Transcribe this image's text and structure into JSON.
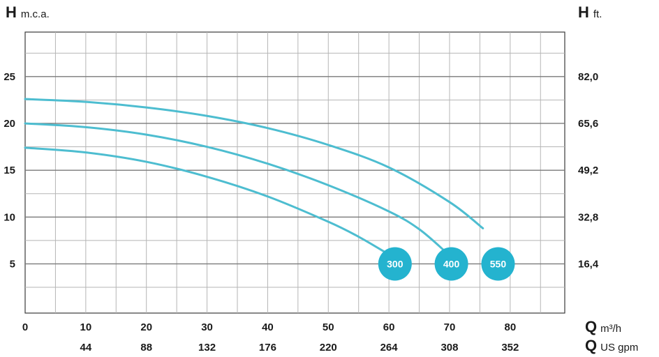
{
  "chart_data": {
    "type": "line",
    "left_axis": {
      "symbol": "H",
      "unit": "m.c.a.",
      "ticks": [
        5,
        10,
        15,
        20,
        25
      ],
      "ylim": [
        -0.25,
        29.75
      ]
    },
    "right_axis": {
      "symbol": "H",
      "unit": "ft.",
      "ticks": [
        "16,4",
        "32,8",
        "49,2",
        "65,6",
        "82,0"
      ]
    },
    "x_axis_primary": {
      "symbol": "Q",
      "unit": "m³/h",
      "ticks": [
        0,
        10,
        20,
        30,
        40,
        50,
        60,
        70,
        80
      ],
      "xlim": [
        0,
        89
      ]
    },
    "x_axis_secondary": {
      "symbol": "Q",
      "unit": "US gpm",
      "ticks": [
        44,
        88,
        132,
        176,
        220,
        264,
        308,
        352
      ]
    },
    "grid": true,
    "series": [
      {
        "name": "300",
        "x": [
          0,
          10,
          20,
          30,
          40,
          50,
          55,
          59.5
        ],
        "y": [
          17.4,
          16.9,
          15.9,
          14.3,
          12.2,
          9.5,
          7.9,
          6.2
        ]
      },
      {
        "name": "400",
        "x": [
          0,
          10,
          20,
          30,
          40,
          50,
          60,
          65,
          69.5
        ],
        "y": [
          20.0,
          19.6,
          18.8,
          17.5,
          15.7,
          13.4,
          10.6,
          8.7,
          6.2
        ]
      },
      {
        "name": "550",
        "x": [
          0,
          10,
          20,
          30,
          40,
          50,
          60,
          70,
          75.5
        ],
        "y": [
          22.6,
          22.3,
          21.7,
          20.8,
          19.5,
          17.7,
          15.3,
          11.6,
          8.8
        ]
      }
    ],
    "badges": [
      {
        "label": "300",
        "x": 61.0,
        "y": 5.0
      },
      {
        "label": "400",
        "x": 70.3,
        "y": 5.0
      },
      {
        "label": "550",
        "x": 78.0,
        "y": 5.0
      }
    ],
    "colors": {
      "curve": "#4dbdd0",
      "badge": "#24b3cf",
      "grid": "#b5b5b5",
      "axis": "#3a3a3a"
    }
  }
}
